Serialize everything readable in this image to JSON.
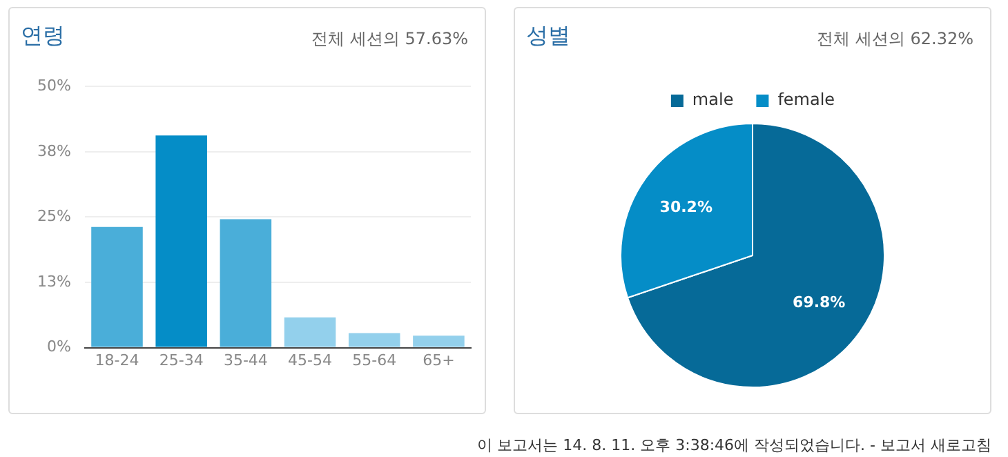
{
  "chart_data": [
    {
      "type": "bar",
      "title": "연령",
      "subtitle": "전체 세션의 57.63%",
      "categories": [
        "18-24",
        "25-34",
        "35-44",
        "45-54",
        "55-64",
        "65+"
      ],
      "values": [
        23.1,
        40.6,
        24.6,
        5.8,
        2.8,
        2.3
      ],
      "colors": [
        "#4aaed9",
        "#058dc7",
        "#4aaed9",
        "#93d0ec",
        "#93d0ec",
        "#93d0ec"
      ],
      "ylim": [
        0,
        50
      ],
      "yticks": [
        {
          "value": 0,
          "label": "0%"
        },
        {
          "value": 12.5,
          "label": "13%"
        },
        {
          "value": 25,
          "label": "25%"
        },
        {
          "value": 37.5,
          "label": "38%"
        },
        {
          "value": 50,
          "label": "50%"
        }
      ],
      "grid": "y",
      "legend": false
    },
    {
      "type": "pie",
      "title": "성별",
      "subtitle": "전체 세션의 62.32%",
      "categories": [
        "male",
        "female"
      ],
      "values": [
        69.8,
        30.2
      ],
      "colors": [
        "#066a98",
        "#058dc7"
      ],
      "value_labels": [
        "69.8%",
        "30.2%"
      ],
      "legend": "top",
      "annotations": [
        "이 보고서는 14. 8. 11. 오후 3:38:46에 작성되었습니다. - 보고서 새로고침"
      ]
    }
  ]
}
